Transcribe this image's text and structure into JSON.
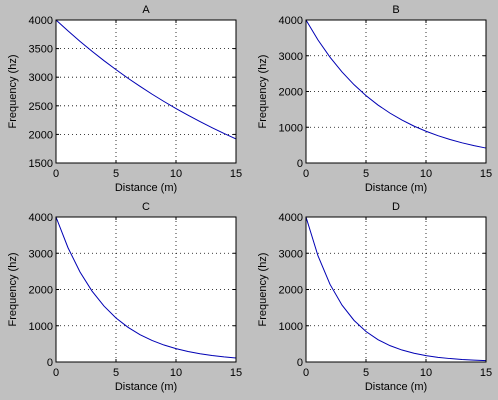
{
  "figure_background": "#c0c0c0",
  "axes_background": "#ffffff",
  "line_color": "#0000b4",
  "chart_data": [
    {
      "type": "line",
      "title": "A",
      "xlabel": "Distance (m)",
      "ylabel": "Frequency (hz)",
      "xlim": [
        0,
        15
      ],
      "ylim": [
        1500,
        4000
      ],
      "xticks": [
        0,
        5,
        10,
        15
      ],
      "yticks": [
        1500,
        2000,
        2500,
        3000,
        3500,
        4000
      ],
      "grid": true,
      "series": [
        {
          "x": [
            0,
            1,
            2,
            3,
            4,
            5,
            6,
            7,
            8,
            9,
            10,
            11,
            12,
            13,
            14,
            15
          ],
          "values": [
            4000,
            3809,
            3627,
            3454,
            3289,
            3132,
            2982,
            2840,
            2704,
            2575,
            2452,
            2335,
            2224,
            2118,
            2016,
            1920
          ]
        }
      ]
    },
    {
      "type": "line",
      "title": "B",
      "xlabel": "Distance (m)",
      "ylabel": "Frequency (hz)",
      "xlim": [
        0,
        15
      ],
      "ylim": [
        0,
        4000
      ],
      "xticks": [
        0,
        5,
        10,
        15
      ],
      "yticks": [
        0,
        1000,
        2000,
        3000,
        4000
      ],
      "grid": true,
      "series": [
        {
          "x": [
            0,
            1,
            2,
            3,
            4,
            5,
            6,
            7,
            8,
            9,
            10,
            11,
            12,
            13,
            14,
            15
          ],
          "values": [
            4000,
            3441,
            2960,
            2546,
            2191,
            1885,
            1621,
            1395,
            1200,
            1032,
            888,
            764,
            657,
            565,
            486,
            418
          ]
        }
      ]
    },
    {
      "type": "line",
      "title": "C",
      "xlabel": "Distance (m)",
      "ylabel": "Frequency (hz)",
      "xlim": [
        0,
        15
      ],
      "ylim": [
        0,
        4000
      ],
      "xticks": [
        0,
        5,
        10,
        15
      ],
      "yticks": [
        0,
        1000,
        2000,
        3000,
        4000
      ],
      "grid": true,
      "series": [
        {
          "x": [
            0,
            1,
            2,
            3,
            4,
            5,
            6,
            7,
            8,
            9,
            10,
            11,
            12,
            13,
            14,
            15
          ],
          "values": [
            4000,
            3152,
            2483,
            1957,
            1542,
            1215,
            957,
            754,
            594,
            468,
            369,
            291,
            229,
            180,
            142,
            112
          ]
        }
      ]
    },
    {
      "type": "line",
      "title": "D",
      "xlabel": "Distance (m)",
      "ylabel": "Frequency (hz)",
      "xlim": [
        0,
        15
      ],
      "ylim": [
        0,
        4000
      ],
      "xticks": [
        0,
        5,
        10,
        15
      ],
      "yticks": [
        0,
        1000,
        2000,
        3000,
        4000
      ],
      "grid": true,
      "series": [
        {
          "x": [
            0,
            1,
            2,
            3,
            4,
            5,
            6,
            7,
            8,
            9,
            10,
            11,
            12,
            13,
            14,
            15
          ],
          "values": [
            4000,
            2928,
            2143,
            1569,
            1149,
            841,
            616,
            451,
            330,
            241,
            177,
            129,
            95,
            69,
            51,
            37
          ]
        }
      ]
    }
  ]
}
